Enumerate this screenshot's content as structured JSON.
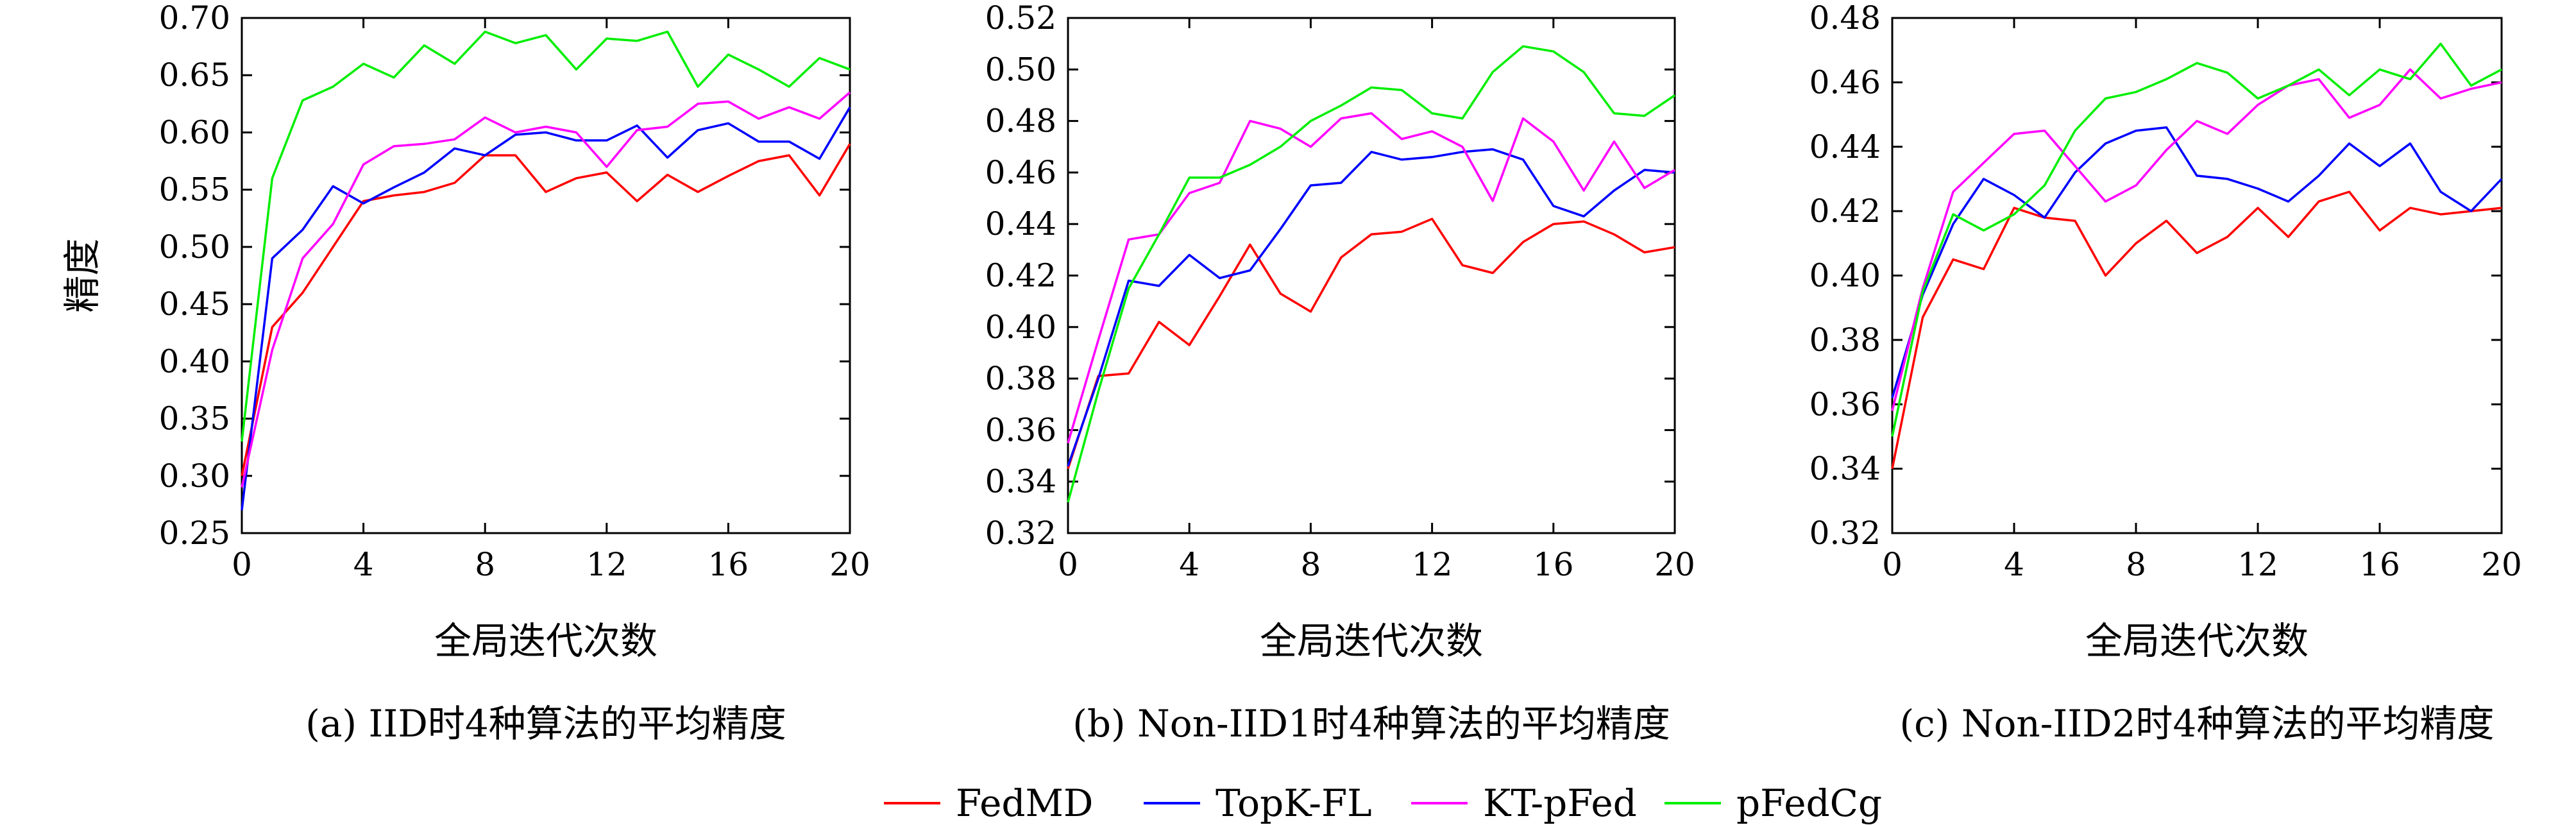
{
  "ylabel_shared": "精度",
  "colors": {
    "FedMD": "#ff0000",
    "TopK-FL": "#0000ff",
    "KT-pFed": "#ff00ff",
    "pFedCg": "#00ee00"
  },
  "legend": [
    "FedMD",
    "TopK-FL",
    "KT-pFed",
    "pFedCg"
  ],
  "chart_data": [
    {
      "type": "line",
      "caption": "(a) IID时4种算法的平均精度",
      "xlabel": "全局迭代次数",
      "ylabel": "精度",
      "xlim": [
        0,
        20
      ],
      "ylim": [
        0.25,
        0.7
      ],
      "xticks": [
        "0",
        "4",
        "8",
        "12",
        "16",
        "20"
      ],
      "yticks": [
        "0.25",
        "0.30",
        "0.35",
        "0.40",
        "0.45",
        "0.50",
        "0.55",
        "0.60",
        "0.65",
        "0.70"
      ],
      "x": [
        0,
        1,
        2,
        3,
        4,
        5,
        6,
        7,
        8,
        9,
        10,
        11,
        12,
        13,
        14,
        15,
        16,
        17,
        18,
        19,
        20
      ],
      "series": [
        {
          "name": "FedMD",
          "values": [
            0.3,
            0.43,
            0.46,
            0.5,
            0.54,
            0.545,
            0.548,
            0.556,
            0.58,
            0.58,
            0.548,
            0.56,
            0.565,
            0.54,
            0.563,
            0.548,
            0.562,
            0.575,
            0.58,
            0.545,
            0.59
          ]
        },
        {
          "name": "TopK-FL",
          "values": [
            0.27,
            0.49,
            0.515,
            0.553,
            0.538,
            0.552,
            0.565,
            0.586,
            0.58,
            0.598,
            0.6,
            0.593,
            0.593,
            0.606,
            0.578,
            0.602,
            0.608,
            0.592,
            0.592,
            0.577,
            0.622
          ]
        },
        {
          "name": "KT-pFed",
          "values": [
            0.29,
            0.41,
            0.49,
            0.52,
            0.572,
            0.588,
            0.59,
            0.594,
            0.613,
            0.6,
            0.605,
            0.6,
            0.57,
            0.602,
            0.605,
            0.625,
            0.627,
            0.612,
            0.622,
            0.612,
            0.635
          ]
        },
        {
          "name": "pFedCg",
          "values": [
            0.33,
            0.56,
            0.628,
            0.64,
            0.66,
            0.648,
            0.676,
            0.66,
            0.688,
            0.678,
            0.685,
            0.655,
            0.682,
            0.68,
            0.688,
            0.64,
            0.668,
            0.655,
            0.64,
            0.665,
            0.655
          ]
        }
      ]
    },
    {
      "type": "line",
      "caption": "(b) Non-IID1时4种算法的平均精度",
      "xlabel": "全局迭代次数",
      "ylabel": "",
      "xlim": [
        0,
        20
      ],
      "ylim": [
        0.32,
        0.52
      ],
      "xticks": [
        "0",
        "4",
        "8",
        "12",
        "16",
        "20"
      ],
      "yticks": [
        "0.32",
        "0.34",
        "0.36",
        "0.38",
        "0.40",
        "0.42",
        "0.44",
        "0.46",
        "0.48",
        "0.50",
        "0.52"
      ],
      "x": [
        0,
        1,
        2,
        3,
        4,
        5,
        6,
        7,
        8,
        9,
        10,
        11,
        12,
        13,
        14,
        15,
        16,
        17,
        18,
        19,
        20
      ],
      "series": [
        {
          "name": "FedMD",
          "values": [
            0.345,
            0.381,
            0.382,
            0.402,
            0.393,
            0.412,
            0.432,
            0.413,
            0.406,
            0.427,
            0.436,
            0.437,
            0.442,
            0.424,
            0.421,
            0.433,
            0.44,
            0.441,
            0.436,
            0.429,
            0.431
          ]
        },
        {
          "name": "TopK-FL",
          "values": [
            0.346,
            0.38,
            0.418,
            0.416,
            0.428,
            0.419,
            0.422,
            0.438,
            0.455,
            0.456,
            0.468,
            0.465,
            0.466,
            0.468,
            0.469,
            0.465,
            0.447,
            0.443,
            0.453,
            0.461,
            0.46
          ]
        },
        {
          "name": "KT-pFed",
          "values": [
            0.355,
            0.395,
            0.434,
            0.436,
            0.452,
            0.456,
            0.48,
            0.477,
            0.47,
            0.481,
            0.483,
            0.473,
            0.476,
            0.47,
            0.449,
            0.481,
            0.472,
            0.453,
            0.472,
            0.454,
            0.461
          ]
        },
        {
          "name": "pFedCg",
          "values": [
            0.332,
            0.375,
            0.415,
            0.436,
            0.458,
            0.458,
            0.463,
            0.47,
            0.48,
            0.486,
            0.493,
            0.492,
            0.483,
            0.481,
            0.499,
            0.509,
            0.507,
            0.499,
            0.483,
            0.482,
            0.49
          ]
        }
      ]
    },
    {
      "type": "line",
      "caption": "(c) Non-IID2时4种算法的平均精度",
      "xlabel": "全局迭代次数",
      "ylabel": "",
      "xlim": [
        0,
        20
      ],
      "ylim": [
        0.32,
        0.48
      ],
      "xticks": [
        "0",
        "4",
        "8",
        "12",
        "16",
        "20"
      ],
      "yticks": [
        "0.32",
        "0.34",
        "0.36",
        "0.38",
        "0.40",
        "0.42",
        "0.44",
        "0.46",
        "0.48"
      ],
      "x": [
        0,
        1,
        2,
        3,
        4,
        5,
        6,
        7,
        8,
        9,
        10,
        11,
        12,
        13,
        14,
        15,
        16,
        17,
        18,
        19,
        20
      ],
      "series": [
        {
          "name": "FedMD",
          "values": [
            0.34,
            0.387,
            0.405,
            0.402,
            0.421,
            0.418,
            0.417,
            0.4,
            0.41,
            0.417,
            0.407,
            0.412,
            0.421,
            0.412,
            0.423,
            0.426,
            0.414,
            0.421,
            0.419,
            0.42,
            0.421
          ]
        },
        {
          "name": "TopK-FL",
          "values": [
            0.362,
            0.394,
            0.416,
            0.43,
            0.425,
            0.418,
            0.432,
            0.441,
            0.445,
            0.446,
            0.431,
            0.43,
            0.427,
            0.423,
            0.431,
            0.441,
            0.434,
            0.441,
            0.426,
            0.42,
            0.43
          ]
        },
        {
          "name": "KT-pFed",
          "values": [
            0.358,
            0.396,
            0.426,
            0.435,
            0.444,
            0.445,
            0.434,
            0.423,
            0.428,
            0.439,
            0.448,
            0.444,
            0.453,
            0.459,
            0.461,
            0.449,
            0.453,
            0.464,
            0.455,
            0.458,
            0.46
          ]
        },
        {
          "name": "pFedCg",
          "values": [
            0.35,
            0.395,
            0.419,
            0.414,
            0.419,
            0.428,
            0.445,
            0.455,
            0.457,
            0.461,
            0.466,
            0.463,
            0.455,
            0.459,
            0.464,
            0.456,
            0.464,
            0.461,
            0.472,
            0.459,
            0.464
          ]
        }
      ]
    }
  ]
}
